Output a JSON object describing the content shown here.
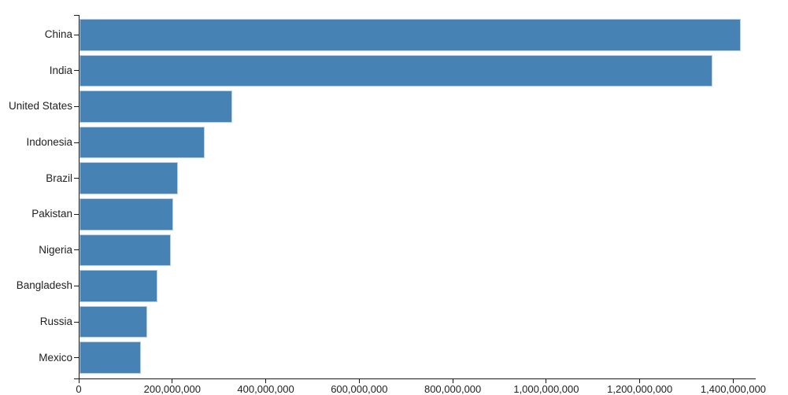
{
  "chart_data": {
    "type": "bar",
    "orientation": "horizontal",
    "title": "",
    "xlabel": "",
    "ylabel": "",
    "categories": [
      "China",
      "India",
      "United States",
      "Indonesia",
      "Brazil",
      "Pakistan",
      "Nigeria",
      "Bangladesh",
      "Russia",
      "Mexico"
    ],
    "values": [
      1415000000,
      1354000000,
      327000000,
      267000000,
      211000000,
      201000000,
      196000000,
      166000000,
      144000000,
      131000000
    ],
    "xlim": [
      0,
      1448000000
    ],
    "x_ticks": [
      {
        "value": 0,
        "label": "0"
      },
      {
        "value": 200000000,
        "label": "200,000,000"
      },
      {
        "value": 400000000,
        "label": "400,000,000"
      },
      {
        "value": 600000000,
        "label": "600,000,000"
      },
      {
        "value": 800000000,
        "label": "800,000,000"
      },
      {
        "value": 1000000000,
        "label": "1,000,000,000"
      },
      {
        "value": 1200000000,
        "label": "1,200,000,000"
      },
      {
        "value": 1400000000,
        "label": "1,400,000,000"
      }
    ],
    "grid": false,
    "legend": null,
    "colors": {
      "bar": "#4682b4",
      "bar_edge": "#b7d0e5",
      "axis": "#1a1a1a",
      "text": "#212121",
      "background": "#ffffff"
    }
  }
}
